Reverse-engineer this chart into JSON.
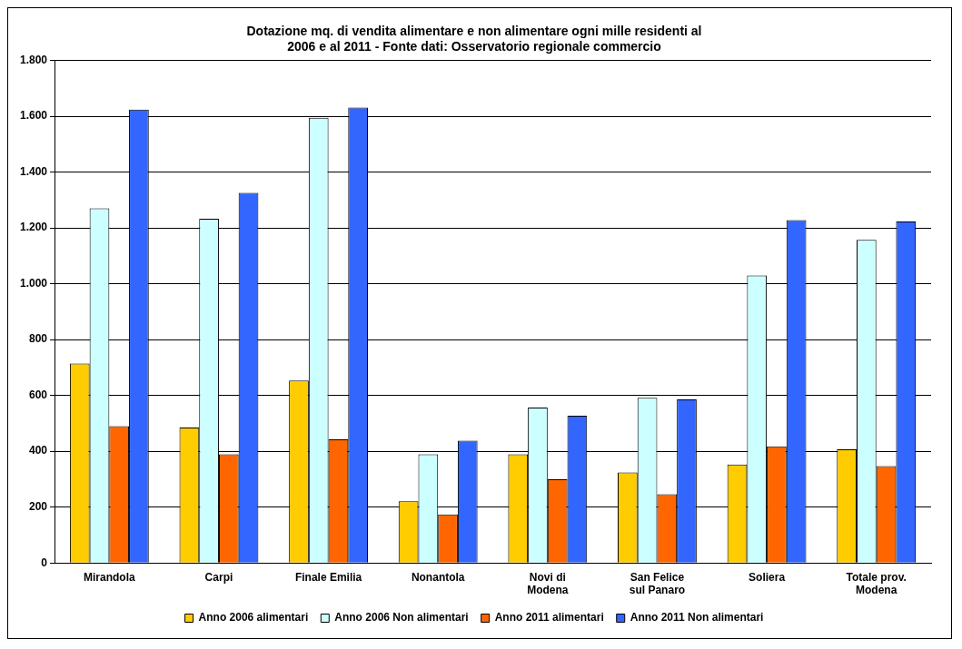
{
  "chart_data": {
    "type": "bar",
    "title": [
      "Dotazione mq. di vendita alimentare e non alimentare ogni mille residenti al",
      "2006 e al 2011 - Fonte dati: Osservatorio regionale commercio"
    ],
    "categories": [
      "Mirandola",
      "Carpi",
      "Finale Emilia",
      "Nonantola",
      "Novi di Modena",
      "San Felice sul Panaro",
      "Soliera",
      "Totale prov. Modena"
    ],
    "series": [
      {
        "name": "Anno 2006 alimentari",
        "color": "#ffcc00",
        "values": [
          714,
          485,
          653,
          221,
          389,
          324,
          353,
          407
        ]
      },
      {
        "name": "Anno 2006 Non alimentari",
        "color": "#ccffff",
        "values": [
          1270,
          1233,
          1595,
          389,
          557,
          592,
          1030,
          1157
        ]
      },
      {
        "name": "Anno 2011 alimentari",
        "color": "#ff6600",
        "values": [
          490,
          389,
          443,
          174,
          300,
          246,
          418,
          347
        ]
      },
      {
        "name": "Anno 2011 Non alimentari",
        "color": "#3366ff",
        "values": [
          1624,
          1326,
          1631,
          438,
          527,
          586,
          1228,
          1223
        ]
      }
    ],
    "ylim": [
      0,
      1800
    ],
    "yticks": [
      0,
      200,
      400,
      600,
      800,
      {
        "value": 1000,
        "label": "1.000"
      },
      {
        "value": 1200,
        "label": "1.200"
      },
      {
        "value": 1400,
        "label": "1.400"
      },
      {
        "value": 1600,
        "label": "1.600"
      },
      {
        "value": 1800,
        "label": "1.800"
      }
    ],
    "grid": "y",
    "legend": "bottom"
  }
}
